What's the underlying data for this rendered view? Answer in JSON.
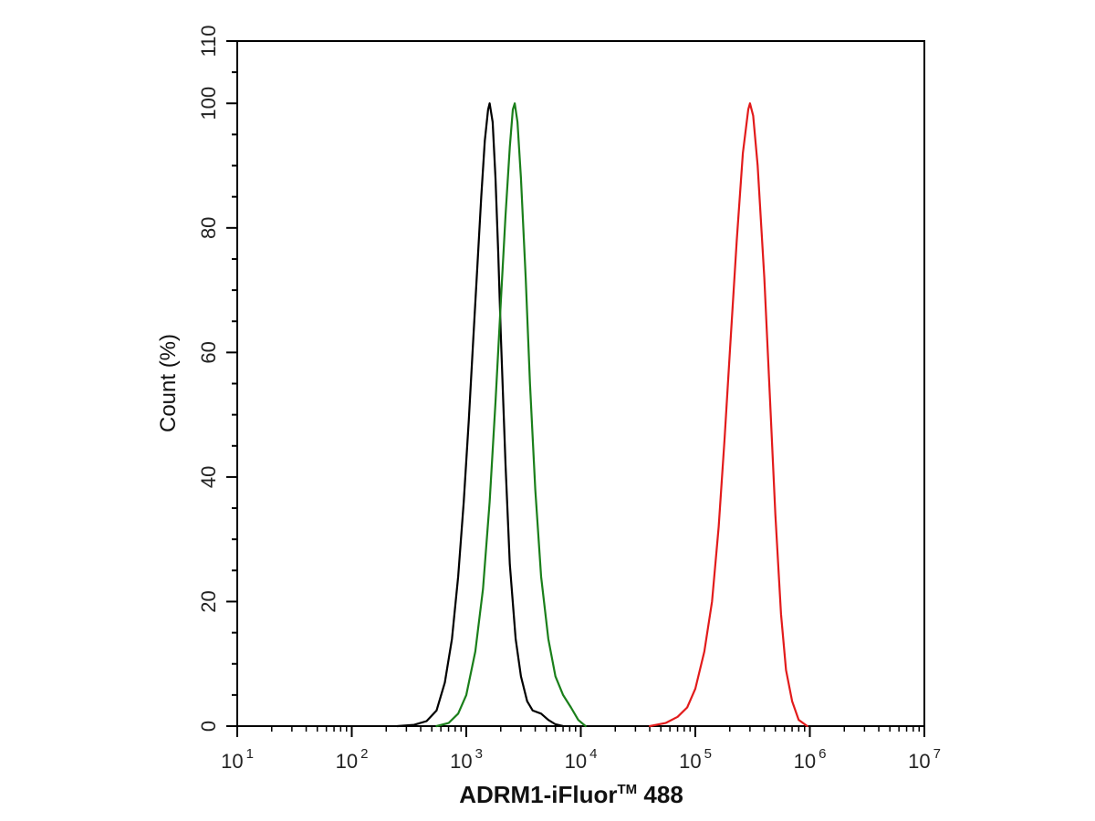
{
  "chart_data": {
    "type": "line",
    "xscale": "log",
    "xlim": [
      10,
      10000000
    ],
    "ylim": [
      0,
      110
    ],
    "ylabel": "Count  (%)",
    "xlabel": {
      "main": "ADRM1-iFluor",
      "superscript": "TM",
      "rest": " 488"
    },
    "grid": false,
    "legend": "none",
    "x_ticks": [
      {
        "base": "10",
        "exp": "1",
        "value": 10
      },
      {
        "base": "10",
        "exp": "2",
        "value": 100
      },
      {
        "base": "10",
        "exp": "3",
        "value": 1000
      },
      {
        "base": "10",
        "exp": "4",
        "value": 10000
      },
      {
        "base": "10",
        "exp": "5",
        "value": 100000
      },
      {
        "base": "10",
        "exp": "6",
        "value": 1000000
      },
      {
        "base": "10",
        "exp": "7",
        "value": 10000000
      }
    ],
    "y_ticks": [
      "0",
      "20",
      "40",
      "60",
      "80",
      "100",
      "110"
    ],
    "series": [
      {
        "color": "#000000",
        "x": [
          250,
          350,
          450,
          550,
          650,
          750,
          850,
          950,
          1050,
          1150,
          1250,
          1350,
          1450,
          1550,
          1600,
          1700,
          1800,
          1900,
          2000,
          2200,
          2400,
          2700,
          3000,
          3400,
          3800,
          4500,
          5200,
          6000,
          7000
        ],
        "y": [
          0,
          0.2,
          0.8,
          2.5,
          7,
          14,
          24,
          36,
          49,
          62,
          74,
          85,
          94,
          99,
          100,
          97,
          88,
          76,
          63,
          42,
          26,
          14,
          8,
          4,
          2.5,
          2,
          1,
          0.3,
          0
        ]
      },
      {
        "color": "#1a7f1a",
        "x": [
          550,
          700,
          850,
          1000,
          1200,
          1400,
          1600,
          1800,
          2000,
          2200,
          2400,
          2550,
          2650,
          2800,
          3000,
          3300,
          3600,
          4000,
          4500,
          5200,
          6000,
          7000,
          8200,
          9500,
          11000
        ],
        "y": [
          0,
          0.5,
          2,
          5,
          12,
          22,
          36,
          52,
          68,
          82,
          93,
          99,
          100,
          97,
          88,
          72,
          55,
          38,
          24,
          14,
          8,
          5,
          3,
          1,
          0
        ]
      },
      {
        "color": "#e21b1b",
        "x": [
          40000,
          55000,
          70000,
          85000,
          100000,
          120000,
          140000,
          160000,
          180000,
          200000,
          230000,
          260000,
          290000,
          300000,
          320000,
          350000,
          400000,
          450000,
          500000,
          560000,
          620000,
          700000,
          800000,
          950000
        ],
        "y": [
          0,
          0.5,
          1.5,
          3,
          6,
          12,
          20,
          32,
          46,
          60,
          78,
          92,
          99,
          100,
          98,
          90,
          72,
          52,
          34,
          18,
          9,
          4,
          1,
          0
        ]
      }
    ]
  }
}
